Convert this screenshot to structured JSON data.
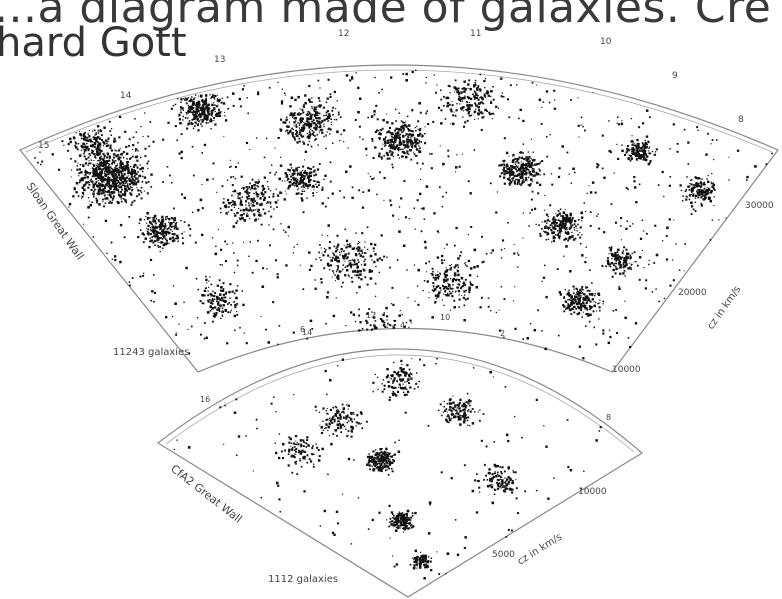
{
  "captions": {
    "top_line1": "...a diagram made of galaxies. Cre",
    "top_line2": "hard Gott",
    "bottom_line": "... ...... ..... ......."
  },
  "upper_survey": {
    "survey_label": "Sloan Great Wall",
    "count_label": "11243 galaxies",
    "velocity_axis_label": "cz in km/s",
    "distance_ticks": [
      "30000",
      "20000",
      "10000"
    ],
    "angle_ticks": [
      "15",
      "14",
      "13",
      "12",
      "11",
      "10",
      "9",
      "8",
      "6",
      "4",
      "2"
    ]
  },
  "lower_survey": {
    "survey_label": "CfA2 Great Wall",
    "count_label": "1112 galaxies",
    "velocity_axis_label": "cz in km/s",
    "distance_ticks": [
      "10000",
      "5000"
    ],
    "angle_ticks": [
      "16",
      "14",
      "12",
      "10",
      "8"
    ]
  },
  "colors": {
    "points": "#111111",
    "frame": "#777777",
    "text": "#444444"
  }
}
